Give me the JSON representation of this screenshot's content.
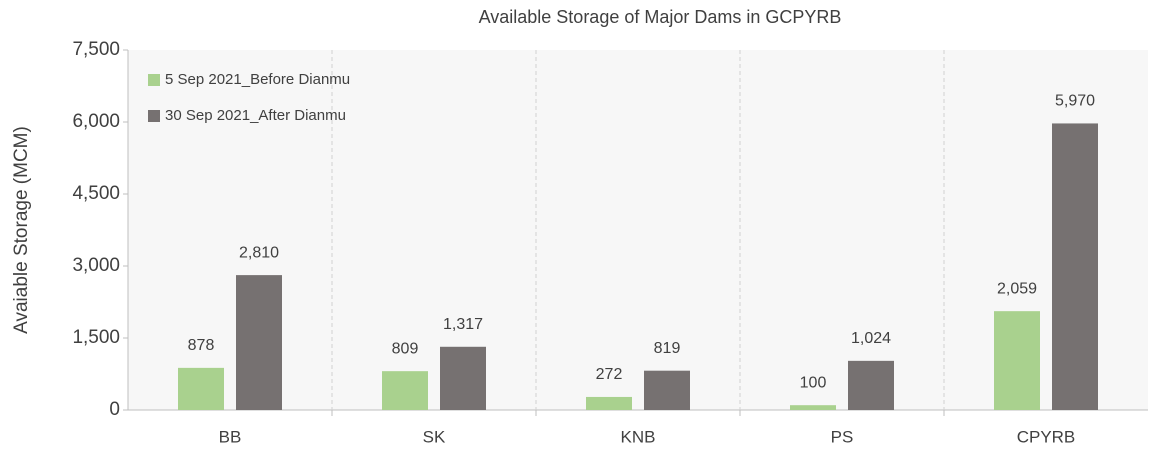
{
  "chart_data": {
    "type": "bar",
    "title": "Available Storage of Major Dams in GCPYRB",
    "y_label": "Avaiable Storage (MCM)",
    "categories": [
      "BB",
      "SK",
      "KNB",
      "PS",
      "CPYRB"
    ],
    "series": [
      {
        "name": "5 Sep 2021_Before Dianmu",
        "color": "#a9d18e",
        "values": [
          878,
          809,
          272,
          100,
          2059
        ],
        "value_labels": [
          "878",
          "809",
          "272",
          "100",
          "2,059"
        ]
      },
      {
        "name": "30 Sep 2021_After Dianmu",
        "color": "#767171",
        "values": [
          2810,
          1317,
          819,
          1024,
          5970
        ],
        "value_labels": [
          "2,810",
          "1,317",
          "819",
          "1,024",
          "5,970"
        ]
      }
    ],
    "ylim": [
      0,
      7500
    ],
    "yticks": [
      0,
      {
        "value": 1500,
        "label": "1,500"
      },
      {
        "value": 3000,
        "label": "3,000"
      },
      {
        "value": 4500,
        "label": "4,500"
      },
      {
        "value": 6000,
        "label": "6,000"
      },
      {
        "value": 7500,
        "label": "7,500"
      }
    ],
    "legend": "upper-left"
  }
}
